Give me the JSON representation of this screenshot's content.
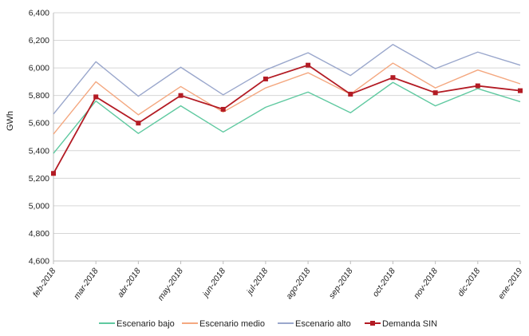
{
  "chart_data": {
    "type": "line",
    "title": "",
    "xlabel": "",
    "ylabel": "GWh",
    "ylim": [
      4600,
      6400
    ],
    "ytick_step": 200,
    "ytick_labels": [
      "4,600",
      "4,800",
      "5,000",
      "5,200",
      "5,400",
      "5,600",
      "5,800",
      "6,000",
      "6,200",
      "6,400"
    ],
    "grid": true,
    "legend_position": "bottom",
    "categories": [
      "feb-2018",
      "mar-2018",
      "abr-2018",
      "may-2018",
      "jun-2018",
      "jul-2018",
      "ago-2018",
      "sep-2018",
      "oct-2018",
      "nov-2018",
      "dic-2018",
      "ene-2019"
    ],
    "series": [
      {
        "name": "Escenario bajo",
        "color": "#5fc9a0",
        "marker": "none",
        "values": [
          5380,
          5760,
          5525,
          5725,
          5535,
          5715,
          5825,
          5675,
          5895,
          5725,
          5850,
          5755
        ]
      },
      {
        "name": "Escenario medio",
        "color": "#f4a880",
        "marker": "none",
        "values": [
          5520,
          5900,
          5660,
          5865,
          5680,
          5855,
          5965,
          5810,
          6035,
          5855,
          5985,
          5885
        ]
      },
      {
        "name": "Escenario alto",
        "color": "#9aa7cc",
        "marker": "none",
        "values": [
          5665,
          6045,
          5795,
          6005,
          5805,
          5985,
          6110,
          5945,
          6170,
          5995,
          6115,
          6020
        ]
      },
      {
        "name": "Demanda SIN",
        "color": "#b31b24",
        "marker": "square",
        "values": [
          5235,
          5790,
          5600,
          5800,
          5700,
          5920,
          6020,
          5810,
          5930,
          5820,
          5870,
          5835
        ]
      }
    ]
  }
}
